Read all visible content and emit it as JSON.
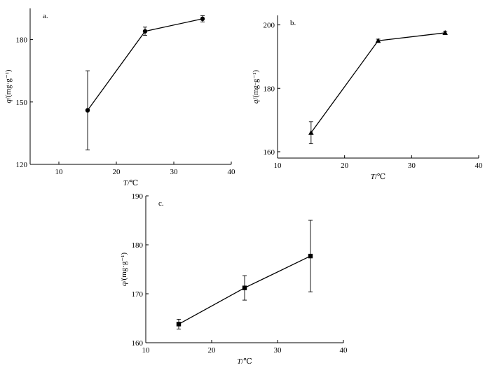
{
  "chart_data": [
    {
      "type": "line",
      "panel_label": "a.",
      "xlabel_var": "T",
      "xlabel_unit": "/℃",
      "ylabel_var": "q",
      "ylabel_unit": "/(mg·g⁻¹)",
      "xlim": [
        5,
        40
      ],
      "ylim": [
        120,
        195
      ],
      "xticks": [
        10,
        20,
        30,
        40
      ],
      "yticks": [
        120,
        150,
        180
      ],
      "marker": "circle",
      "points": [
        {
          "x": 15,
          "y": 146,
          "err": 19
        },
        {
          "x": 25,
          "y": 184,
          "err": 2
        },
        {
          "x": 35,
          "y": 190,
          "err": 1.5
        }
      ]
    },
    {
      "type": "line",
      "panel_label": "b.",
      "xlabel_var": "T",
      "xlabel_unit": "/℃",
      "ylabel_var": "q",
      "ylabel_unit": "/(mg·g⁻¹)",
      "xlim": [
        10,
        40
      ],
      "ylim": [
        158,
        203
      ],
      "xticks": [
        10,
        20,
        30,
        40
      ],
      "yticks": [
        160,
        180,
        200
      ],
      "marker": "triangle",
      "points": [
        {
          "x": 15,
          "y": 166,
          "err": 3.5
        },
        {
          "x": 25,
          "y": 195,
          "err": 0.5
        },
        {
          "x": 35,
          "y": 197.5,
          "err": 0.5
        }
      ]
    },
    {
      "type": "line",
      "panel_label": "c.",
      "xlabel_var": "T",
      "xlabel_unit": "/℃",
      "ylabel_var": "q",
      "ylabel_unit": "/(mg·g⁻¹)",
      "xlim": [
        10,
        40
      ],
      "ylim": [
        160,
        190
      ],
      "xticks": [
        10,
        20,
        30,
        40
      ],
      "yticks": [
        160,
        170,
        180,
        190
      ],
      "marker": "square",
      "points": [
        {
          "x": 15,
          "y": 163.8,
          "err": 1
        },
        {
          "x": 25,
          "y": 171.2,
          "err": 2.5
        },
        {
          "x": 35,
          "y": 177.7,
          "err": 7.3
        }
      ]
    }
  ]
}
